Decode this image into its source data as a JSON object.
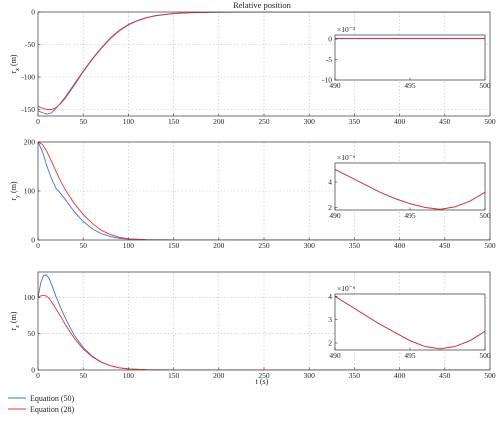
{
  "figure": {
    "title": "Relative position",
    "xlabel": "t (s)",
    "legend": [
      {
        "label": "Equation (50)",
        "color": "#4a6fc4"
      },
      {
        "label": "Equation (28)",
        "color": "#e0363a"
      }
    ]
  },
  "chart_data": [
    {
      "type": "line",
      "ylabel": "r_x (m)",
      "xlim": [
        0,
        500
      ],
      "ylim": [
        -160,
        0
      ],
      "xticks": [
        0,
        50,
        100,
        150,
        200,
        250,
        300,
        350,
        400,
        450,
        500
      ],
      "yticks": [
        -150,
        -100,
        -50,
        0
      ],
      "grid": true,
      "series": [
        {
          "name": "Equation (50)",
          "color": "#4a6fc4",
          "x": [
            0,
            5,
            10,
            15,
            20,
            25,
            30,
            40,
            50,
            60,
            70,
            80,
            90,
            100,
            110,
            120,
            130,
            150,
            170,
            200,
            250,
            300,
            500
          ],
          "y": [
            -152,
            -155,
            -157,
            -155,
            -148,
            -140,
            -131,
            -111,
            -91,
            -72,
            -55,
            -40,
            -28,
            -19,
            -13,
            -8.5,
            -5.5,
            -2.3,
            -0.9,
            -0.2,
            0,
            0,
            0
          ]
        },
        {
          "name": "Equation (28)",
          "color": "#e0363a",
          "x": [
            0,
            5,
            10,
            15,
            20,
            25,
            30,
            40,
            50,
            60,
            70,
            80,
            90,
            100,
            110,
            120,
            130,
            150,
            170,
            200,
            250,
            300,
            500
          ],
          "y": [
            -145,
            -148,
            -150,
            -150,
            -147,
            -141,
            -133,
            -113,
            -92,
            -73,
            -56,
            -41,
            -29,
            -20,
            -13.5,
            -9,
            -5.8,
            -2.4,
            -1,
            -0.2,
            0,
            0,
            0
          ]
        }
      ],
      "inset": {
        "xlim": [
          490,
          500
        ],
        "ylim": [
          -10,
          1
        ],
        "xticks": [
          490,
          495,
          500
        ],
        "yticks": [
          -10,
          -5,
          0
        ],
        "exponent_label": "×10⁻³",
        "series": [
          {
            "name": "Equation (50)",
            "color": "#4a6fc4",
            "x": [
              490,
              500
            ],
            "y": [
              0.2,
              0.2
            ]
          },
          {
            "name": "Equation (28)",
            "color": "#e0363a",
            "x": [
              490,
              500
            ],
            "y": [
              0.1,
              0.1
            ]
          }
        ]
      }
    },
    {
      "type": "line",
      "ylabel": "r_y (m)",
      "xlim": [
        0,
        500
      ],
      "ylim": [
        0,
        200
      ],
      "xticks": [
        0,
        50,
        100,
        150,
        200,
        250,
        300,
        350,
        400,
        450,
        500
      ],
      "yticks": [
        0,
        100,
        200
      ],
      "grid": true,
      "series": [
        {
          "name": "Equation (50)",
          "color": "#4a6fc4",
          "x": [
            0,
            5,
            10,
            15,
            20,
            25,
            30,
            40,
            50,
            60,
            70,
            80,
            90,
            100,
            120,
            150,
            200,
            500
          ],
          "y": [
            200,
            180,
            150,
            125,
            105,
            95,
            83,
            58,
            38,
            23,
            13,
            7,
            3.5,
            1.8,
            0.5,
            0,
            0,
            0
          ]
        },
        {
          "name": "Equation (28)",
          "color": "#e0363a",
          "x": [
            0,
            5,
            10,
            15,
            20,
            25,
            30,
            40,
            50,
            60,
            70,
            80,
            90,
            100,
            120,
            150,
            200,
            500
          ],
          "y": [
            200,
            195,
            180,
            160,
            140,
            120,
            103,
            75,
            52,
            34,
            20,
            11,
            5.5,
            2.5,
            0.6,
            0,
            0,
            0
          ]
        }
      ],
      "inset": {
        "xlim": [
          490,
          500
        ],
        "ylim": [
          1.8,
          5.5
        ],
        "xticks": [
          490,
          495,
          500
        ],
        "yticks": [
          2,
          4
        ],
        "exponent_label": "×10⁻⁶",
        "series": [
          {
            "name": "Equation (50)",
            "color": "#4a6fc4",
            "x": [
              490,
              491,
              492,
              493,
              494,
              495,
              496,
              497,
              498,
              499,
              500
            ],
            "y": [
              5.0,
              4.4,
              3.8,
              3.2,
              2.7,
              2.3,
              2.0,
              1.85,
              2.05,
              2.5,
              3.2
            ]
          },
          {
            "name": "Equation (28)",
            "color": "#e0363a",
            "x": [
              490,
              491,
              492,
              493,
              494,
              495,
              496,
              497,
              498,
              499,
              500
            ],
            "y": [
              5.0,
              4.4,
              3.8,
              3.2,
              2.7,
              2.3,
              2.0,
              1.85,
              2.05,
              2.5,
              3.2
            ]
          }
        ]
      }
    },
    {
      "type": "line",
      "ylabel": "r_z (m)",
      "xlim": [
        0,
        500
      ],
      "ylim": [
        0,
        135
      ],
      "xticks": [
        0,
        50,
        100,
        150,
        200,
        250,
        300,
        350,
        400,
        450,
        500
      ],
      "yticks": [
        0,
        50,
        100
      ],
      "grid": true,
      "series": [
        {
          "name": "Equation (50)",
          "color": "#4a6fc4",
          "x": [
            0,
            3,
            6,
            9,
            12,
            15,
            20,
            25,
            30,
            40,
            50,
            60,
            70,
            80,
            90,
            100,
            120,
            150,
            200,
            500
          ],
          "y": [
            100,
            120,
            130,
            131,
            127,
            118,
            101,
            86,
            72,
            48,
            31,
            19,
            11,
            6,
            3,
            1.5,
            0.4,
            0,
            0,
            0
          ]
        },
        {
          "name": "Equation (28)",
          "color": "#e0363a",
          "x": [
            0,
            3,
            6,
            9,
            12,
            15,
            20,
            25,
            30,
            40,
            50,
            60,
            70,
            80,
            90,
            100,
            120,
            150,
            200,
            500
          ],
          "y": [
            100,
            102,
            103,
            102,
            99,
            94,
            84,
            74,
            63,
            44,
            29,
            18,
            10.5,
            6,
            3,
            1.5,
            0.4,
            0,
            0,
            0
          ]
        }
      ],
      "inset": {
        "xlim": [
          490,
          500
        ],
        "ylim": [
          1.7,
          4.1
        ],
        "xticks": [
          490,
          495,
          500
        ],
        "yticks": [
          2,
          3,
          4
        ],
        "exponent_label": "×10⁻⁶",
        "series": [
          {
            "name": "Equation (50)",
            "color": "#4a6fc4",
            "x": [
              490,
              491,
              492,
              493,
              494,
              495,
              496,
              497,
              498,
              499,
              500
            ],
            "y": [
              4.0,
              3.6,
              3.2,
              2.8,
              2.45,
              2.1,
              1.85,
              1.75,
              1.85,
              2.1,
              2.5
            ]
          },
          {
            "name": "Equation (28)",
            "color": "#e0363a",
            "x": [
              490,
              491,
              492,
              493,
              494,
              495,
              496,
              497,
              498,
              499,
              500
            ],
            "y": [
              4.0,
              3.6,
              3.2,
              2.8,
              2.45,
              2.1,
              1.85,
              1.75,
              1.85,
              2.1,
              2.5
            ]
          }
        ]
      }
    }
  ]
}
